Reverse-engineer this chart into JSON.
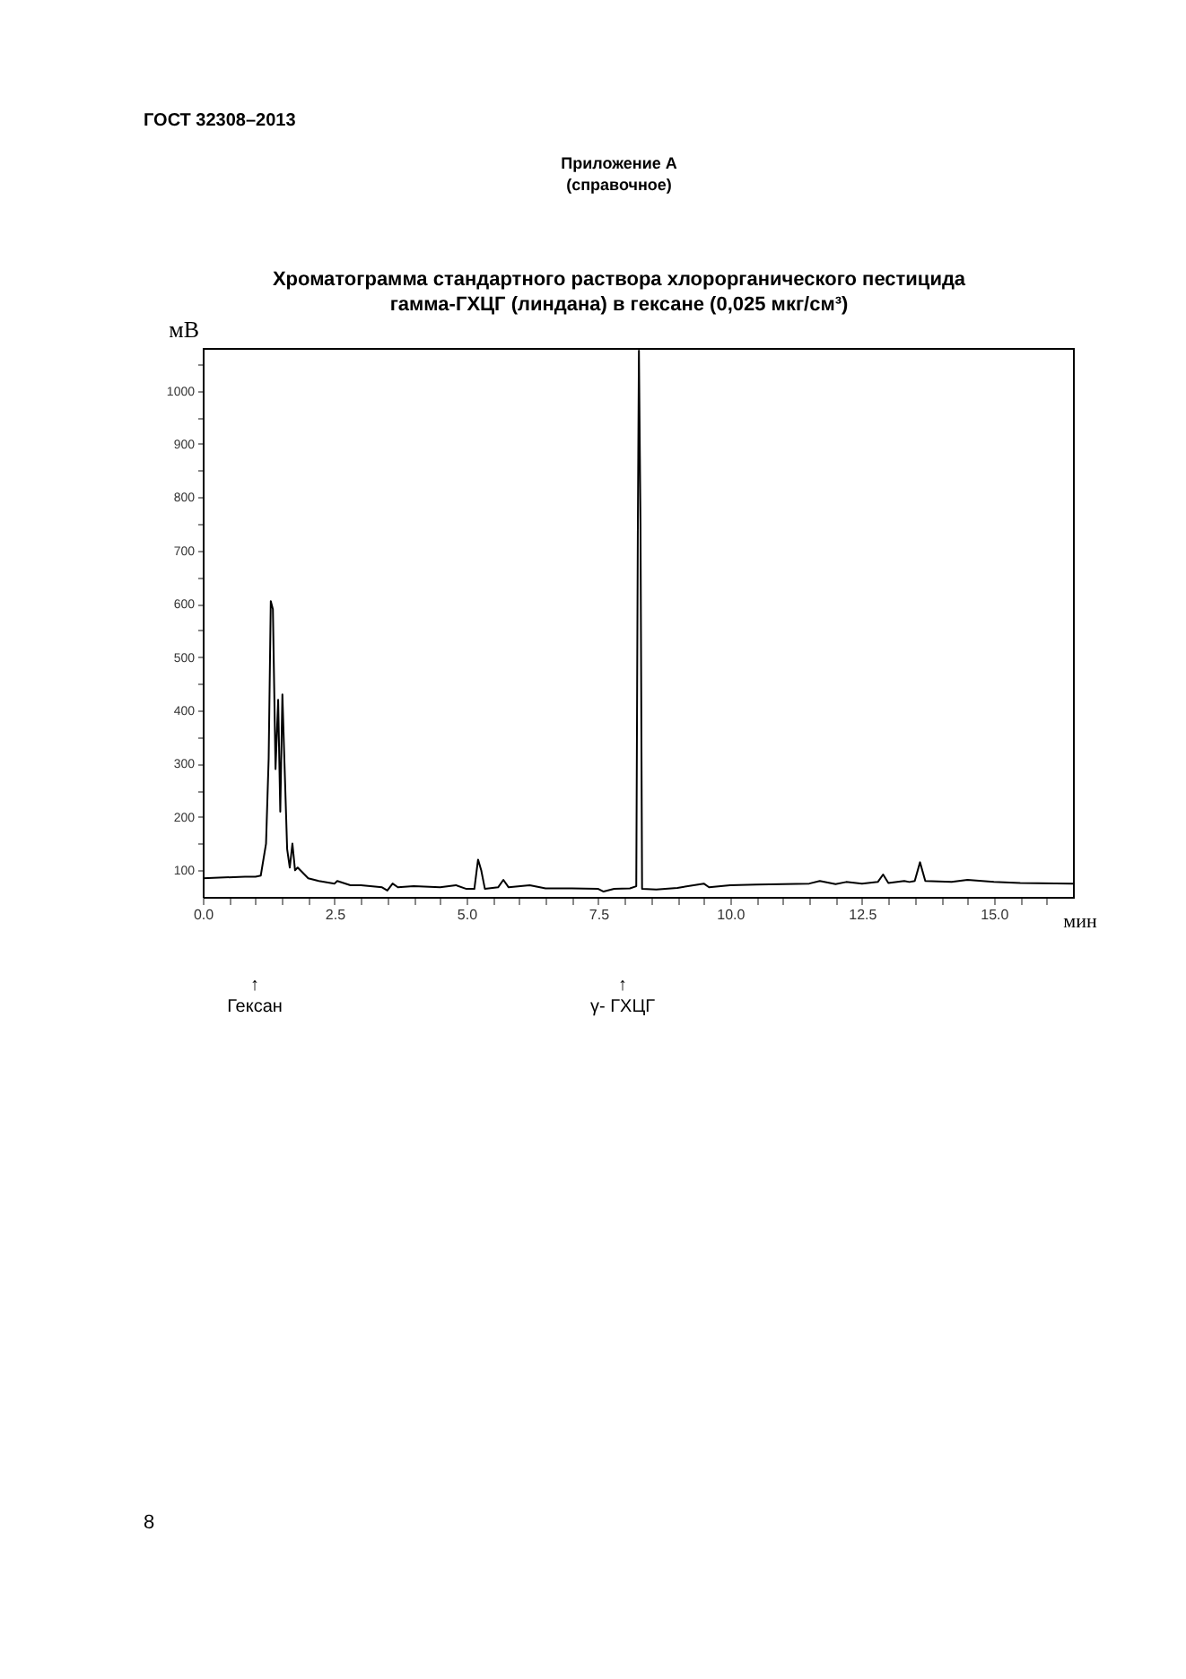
{
  "chart_data": {
    "type": "line",
    "title": "Хроматограмма стандартного раствора хлорорганического пестицида\nгамма-ГХЦГ (линдана)  в гексане (0,025 мкг/см³)",
    "xlabel": "мин",
    "ylabel": "мВ",
    "annotations": [
      "ГОСТ 32308–2013",
      "Приложение А\n(справочное)",
      "8",
      "↑\nГексан",
      "↑\nγ- ГХЦГ"
    ],
    "x": [
      0,
      0.8,
      1.0,
      1.1,
      1.2,
      1.25,
      1.29,
      1.33,
      1.38,
      1.43,
      1.47,
      1.51,
      1.55,
      1.6,
      1.65,
      1.7,
      1.75,
      1.8,
      1.9,
      2.0,
      2.2,
      2.5,
      2.55,
      2.8,
      3.0,
      3.4,
      3.5,
      3.6,
      3.7,
      4.0,
      4.5,
      4.8,
      5.0,
      5.15,
      5.22,
      5.28,
      5.35,
      5.6,
      5.7,
      5.8,
      6.2,
      6.5,
      7.0,
      7.5,
      7.6,
      7.8,
      8.1,
      8.22,
      8.25,
      8.27,
      8.3,
      8.33,
      8.6,
      9.0,
      9.5,
      9.6,
      10.0,
      10.5,
      11.0,
      11.5,
      11.7,
      12.0,
      12.2,
      12.5,
      12.8,
      12.9,
      13.0,
      13.3,
      13.4,
      13.5,
      13.6,
      13.7,
      14.2,
      14.5,
      15.0,
      15.5,
      16.5
    ],
    "series": [
      {
        "color": "#000000",
        "values": [
          85,
          88,
          88,
          90,
          150,
          310,
          605,
          590,
          290,
          420,
          210,
          430,
          300,
          140,
          105,
          150,
          100,
          105,
          95,
          85,
          80,
          75,
          80,
          72,
          72,
          68,
          62,
          75,
          68,
          70,
          68,
          72,
          65,
          65,
          120,
          100,
          65,
          68,
          82,
          68,
          72,
          66,
          66,
          65,
          60,
          65,
          66,
          70,
          750,
          1075,
          750,
          65,
          64,
          67,
          75,
          68,
          72,
          73,
          74,
          75,
          80,
          74,
          78,
          75,
          78,
          92,
          76,
          80,
          78,
          80,
          115,
          80,
          78,
          82,
          78,
          76,
          75
        ]
      }
    ],
    "xlim": [
      0,
      16.5
    ],
    "ylim": [
      50,
      1080
    ],
    "xticks": [
      {
        "value": 0,
        "label": "0.0"
      },
      {
        "value": 0.5,
        "label": null
      },
      {
        "value": 1,
        "label": null
      },
      {
        "value": 1.5,
        "label": null
      },
      {
        "value": 2,
        "label": null
      },
      {
        "value": 2.5,
        "label": "2.5"
      },
      {
        "value": 3,
        "label": null
      },
      {
        "value": 3.5,
        "label": null
      },
      {
        "value": 4,
        "label": null
      },
      {
        "value": 4.5,
        "label": null
      },
      {
        "value": 5,
        "label": "5.0"
      },
      {
        "value": 5.5,
        "label": null
      },
      {
        "value": 6,
        "label": null
      },
      {
        "value": 6.5,
        "label": null
      },
      {
        "value": 7,
        "label": null
      },
      {
        "value": 7.5,
        "label": "7.5"
      },
      {
        "value": 8,
        "label": null
      },
      {
        "value": 8.5,
        "label": null
      },
      {
        "value": 9,
        "label": null
      },
      {
        "value": 9.5,
        "label": null
      },
      {
        "value": 10,
        "label": "10.0"
      },
      {
        "value": 10.5,
        "label": null
      },
      {
        "value": 11,
        "label": null
      },
      {
        "value": 11.5,
        "label": null
      },
      {
        "value": 12,
        "label": null
      },
      {
        "value": 12.5,
        "label": "12.5"
      },
      {
        "value": 13,
        "label": null
      },
      {
        "value": 13.5,
        "label": null
      },
      {
        "value": 14,
        "label": null
      },
      {
        "value": 14.5,
        "label": null
      },
      {
        "value": 15,
        "label": "15.0"
      },
      {
        "value": 15.5,
        "label": null
      },
      {
        "value": 16,
        "label": null
      }
    ],
    "yticks": [
      100,
      {
        "value": 150,
        "label": null
      },
      200,
      {
        "value": 250,
        "label": null
      },
      300,
      {
        "value": 350,
        "label": null
      },
      400,
      {
        "value": 450,
        "label": null
      },
      500,
      {
        "value": 550,
        "label": null
      },
      600,
      {
        "value": 650,
        "label": null
      },
      700,
      {
        "value": 750,
        "label": null
      },
      800,
      {
        "value": 850,
        "label": null
      },
      900,
      {
        "value": 950,
        "label": null
      },
      1000,
      {
        "value": 1050,
        "label": null
      }
    ],
    "grid": false,
    "marker": "none",
    "line_style": "solid"
  }
}
